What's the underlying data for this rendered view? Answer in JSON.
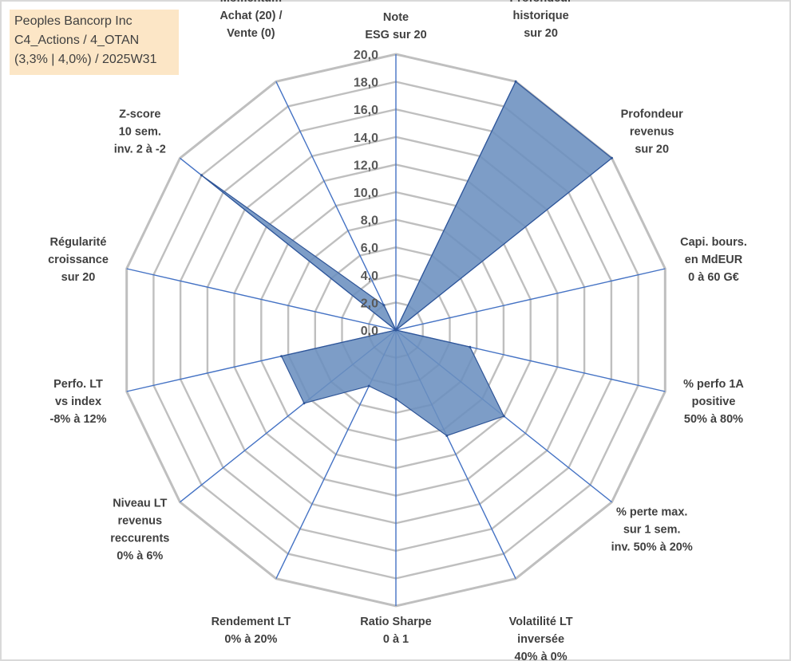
{
  "info": {
    "line1": "Peoples Bancorp Inc",
    "line2": "C4_Actions / 4_OTAN",
    "line3": "(3,3% | 4,0%) / 2025W31"
  },
  "chart_data": {
    "type": "radar",
    "title": "",
    "rmin": 0,
    "rmax": 20,
    "tick_step": 2,
    "tick_labels": [
      "0,0",
      "2,0",
      "4,0",
      "6,0",
      "8,0",
      "10,0",
      "12,0",
      "14,0",
      "16,0",
      "18,0",
      "20,0"
    ],
    "grid": true,
    "colors": {
      "fill": "#6b8fbf",
      "stroke": "#2f5597",
      "grid": "#bfbfbf",
      "spoke": "#4472c4",
      "infobox": "#fce6c6"
    },
    "axes": [
      {
        "label": [
          "Note",
          "ESG sur 20"
        ]
      },
      {
        "label": [
          "Profondeur",
          "historique",
          "sur 20"
        ]
      },
      {
        "label": [
          "Profondeur",
          "revenus",
          "sur 20"
        ]
      },
      {
        "label": [
          "Capi. bours.",
          "en MdEUR",
          "0 à 60 G€"
        ]
      },
      {
        "label": [
          "% perfo 1A",
          "positive",
          "50% à 80%"
        ]
      },
      {
        "label": [
          "% perte max.",
          "sur 1 sem.",
          "inv. 50% à 20%"
        ]
      },
      {
        "label": [
          "Volatilité LT",
          "inversée",
          "40% à 0%"
        ]
      },
      {
        "label": [
          "Ratio Sharpe",
          "0 à 1"
        ]
      },
      {
        "label": [
          "Rendement LT",
          "0% à 20%"
        ]
      },
      {
        "label": [
          "Niveau LT",
          "revenus",
          "reccurents",
          "0% à 6%"
        ]
      },
      {
        "label": [
          "Perfo. LT",
          "vs index",
          "-8% à 12%"
        ]
      },
      {
        "label": [
          "Régularité",
          "croissance",
          "sur 20"
        ]
      },
      {
        "label": [
          "Z-score",
          "10 sem.",
          "inv. 2 à -2"
        ]
      },
      {
        "label": [
          "Momentum",
          "Achat (20) /",
          "Vente (0)"
        ]
      }
    ],
    "series": [
      {
        "values": [
          0.0,
          20.0,
          20.0,
          0.0,
          5.5,
          10.0,
          8.5,
          5.0,
          4.5,
          8.5,
          8.5,
          0.0,
          18.0,
          2.0
        ]
      }
    ]
  }
}
